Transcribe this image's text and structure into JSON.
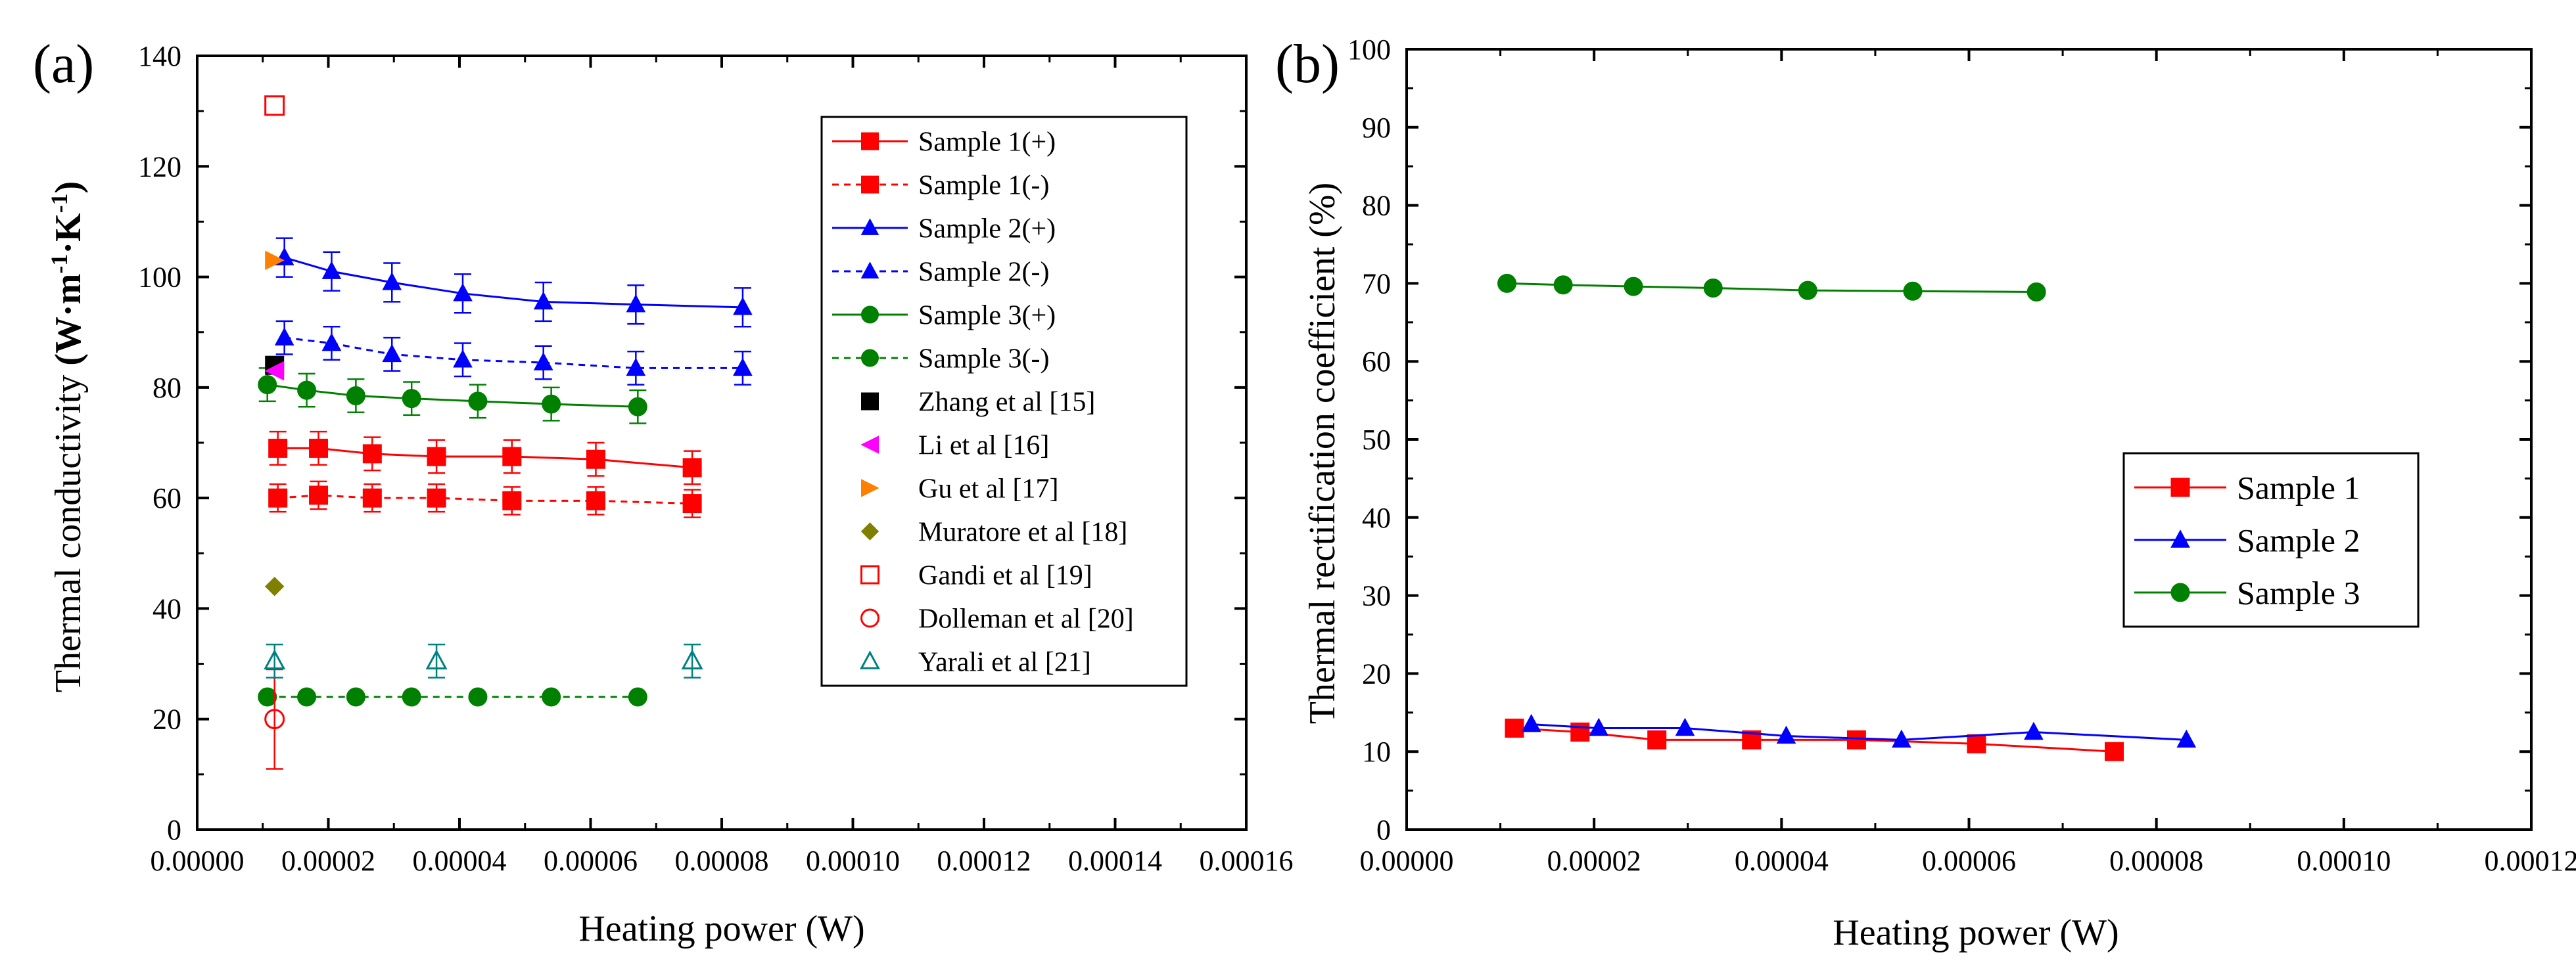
{
  "chart_data": [
    {
      "panel_label": "(a)",
      "type": "scatter",
      "xlabel": "Heating power (W)",
      "ylabel": "Thermal conductivity (W·m⁻¹·K⁻¹)",
      "ylabel_parts": {
        "prefix": "Thermal conductivity ",
        "unit_main": "(W·m",
        "sup1": "-1",
        "mid": "·K",
        "sup2": "-1",
        "close": ")"
      },
      "xlim": [
        0,
        0.00016
      ],
      "ylim": [
        0,
        140
      ],
      "xticks": [
        "0.00000",
        "0.00002",
        "0.00004",
        "0.00006",
        "0.00008",
        "0.00010",
        "0.00012",
        "0.00014",
        "0.00016"
      ],
      "yticks": [
        "0",
        "20",
        "40",
        "60",
        "80",
        "100",
        "120",
        "140"
      ],
      "grid": false,
      "legend_position": "top-right",
      "series": [
        {
          "name": "Sample 1(+)",
          "color": "#ff0000",
          "marker": "square-filled",
          "line": "solid",
          "x": [
            1.23e-05,
            1.85e-05,
            2.67e-05,
            3.65e-05,
            4.8e-05,
            6.08e-05,
            7.55e-05
          ],
          "y": [
            69,
            69,
            68,
            67.5,
            67.5,
            67,
            65.5
          ],
          "yerr": 3
        },
        {
          "name": "Sample 1(-)",
          "color": "#ff0000",
          "marker": "square-filled",
          "line": "dashed",
          "x": [
            1.23e-05,
            1.85e-05,
            2.67e-05,
            3.65e-05,
            4.8e-05,
            6.08e-05,
            7.55e-05
          ],
          "y": [
            60,
            60.5,
            60,
            60,
            59.5,
            59.5,
            59
          ],
          "yerr": 2.5
        },
        {
          "name": "Sample 2(+)",
          "color": "#0000ff",
          "marker": "triangle-filled",
          "line": "solid",
          "x": [
            1.33e-05,
            2.05e-05,
            2.97e-05,
            4.05e-05,
            5.28e-05,
            6.69e-05,
            8.32e-05
          ],
          "y": [
            103.5,
            101,
            99,
            97,
            95.5,
            95,
            94.5
          ],
          "yerr": 3.5
        },
        {
          "name": "Sample 2(-)",
          "color": "#0000ff",
          "marker": "triangle-filled",
          "line": "dashed",
          "x": [
            1.33e-05,
            2.05e-05,
            2.97e-05,
            4.05e-05,
            5.28e-05,
            6.69e-05,
            8.32e-05
          ],
          "y": [
            89,
            88,
            86,
            85,
            84.5,
            83.5,
            83.5
          ],
          "yerr": 3
        },
        {
          "name": "Sample 3(+)",
          "color": "#008000",
          "marker": "circle-filled",
          "line": "solid",
          "x": [
            1.07e-05,
            1.67e-05,
            2.42e-05,
            3.27e-05,
            4.28e-05,
            5.4e-05,
            6.72e-05
          ],
          "y": [
            80.5,
            79.5,
            78.5,
            78,
            77.5,
            77,
            76.5
          ],
          "yerr": 3
        },
        {
          "name": "Sample 3(-)",
          "color": "#008000",
          "marker": "circle-filled",
          "line": "dashed",
          "x": [
            1.07e-05,
            1.67e-05,
            2.42e-05,
            3.27e-05,
            4.28e-05,
            5.4e-05,
            6.72e-05
          ],
          "y": [
            24,
            24,
            24,
            24,
            24,
            24,
            24
          ],
          "yerr": 0
        },
        {
          "name": "Zhang et al [15]",
          "color": "#000000",
          "marker": "square-filled",
          "line": "none",
          "x": [
            1.18e-05
          ],
          "y": [
            84
          ],
          "yerr": 0
        },
        {
          "name": "Li et al [16]",
          "color": "#ff00ff",
          "marker": "triangle-left-filled",
          "line": "none",
          "x": [
            1.18e-05
          ],
          "y": [
            83
          ],
          "yerr": 0
        },
        {
          "name": "Gu et al [17]",
          "color": "#ff8000",
          "marker": "triangle-right-filled",
          "line": "none",
          "x": [
            1.18e-05
          ],
          "y": [
            103
          ],
          "yerr": 0
        },
        {
          "name": "Muratore et al [18]",
          "color": "#808000",
          "marker": "diamond-filled",
          "line": "none",
          "x": [
            1.18e-05
          ],
          "y": [
            44
          ],
          "yerr": 0
        },
        {
          "name": "Gandi et al [19]",
          "color": "#ff0000",
          "marker": "square-open",
          "line": "none",
          "x": [
            1.18e-05
          ],
          "y": [
            131
          ],
          "yerr": 0
        },
        {
          "name": "Dolleman et al [20]",
          "color": "#ff0000",
          "marker": "circle-open",
          "line": "none",
          "x": [
            1.18e-05
          ],
          "y": [
            20
          ],
          "yerr": 9
        },
        {
          "name": "Yarali et al [21]",
          "color": "#008080",
          "marker": "triangle-open",
          "line": "none",
          "x": [
            1.18e-05,
            3.65e-05,
            7.55e-05
          ],
          "y": [
            30.5,
            30.5,
            30.5
          ],
          "yerr": 3
        }
      ]
    },
    {
      "panel_label": "(b)",
      "type": "line",
      "xlabel": "Heating power (W)",
      "ylabel": "Thermal rectification coefficient (%)",
      "xlim": [
        0,
        0.00012
      ],
      "ylim": [
        0,
        100
      ],
      "xticks": [
        "0.00000",
        "0.00002",
        "0.00004",
        "0.00006",
        "0.00008",
        "0.00010",
        "0.00012"
      ],
      "yticks": [
        "0",
        "10",
        "20",
        "30",
        "40",
        "50",
        "60",
        "70",
        "80",
        "90",
        "100"
      ],
      "grid": false,
      "legend_position": "right",
      "series": [
        {
          "name": "Sample 1",
          "color": "#ff0000",
          "marker": "square-filled",
          "line": "solid",
          "x": [
            1.15e-05,
            1.85e-05,
            2.67e-05,
            3.68e-05,
            4.8e-05,
            6.08e-05,
            7.55e-05
          ],
          "y": [
            13,
            12.5,
            11.5,
            11.5,
            11.5,
            11,
            10
          ]
        },
        {
          "name": "Sample 2",
          "color": "#0000ff",
          "marker": "triangle-filled",
          "line": "solid",
          "x": [
            1.33e-05,
            2.05e-05,
            2.97e-05,
            4.05e-05,
            5.28e-05,
            6.69e-05,
            8.32e-05
          ],
          "y": [
            13.5,
            13,
            13,
            12,
            11.5,
            12.5,
            11.5
          ]
        },
        {
          "name": "Sample 3",
          "color": "#008000",
          "marker": "circle-filled",
          "line": "solid",
          "x": [
            1.07e-05,
            1.67e-05,
            2.42e-05,
            3.27e-05,
            4.28e-05,
            5.4e-05,
            6.72e-05
          ],
          "y": [
            70,
            69.8,
            69.6,
            69.4,
            69.1,
            69,
            68.9
          ]
        }
      ]
    }
  ]
}
